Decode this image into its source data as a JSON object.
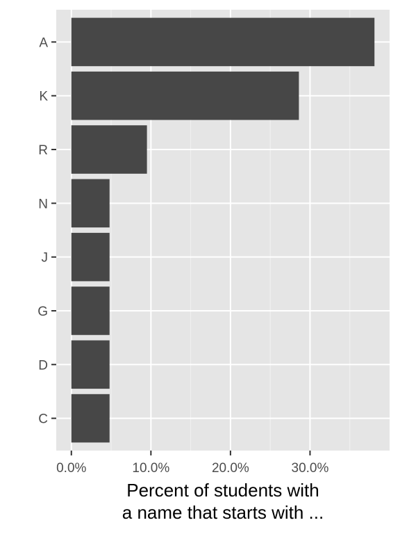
{
  "chart_data": {
    "type": "bar",
    "orientation": "horizontal",
    "categories": [
      "A",
      "K",
      "R",
      "N",
      "J",
      "G",
      "D",
      "C"
    ],
    "values": [
      38.1,
      28.6,
      9.5,
      4.8,
      4.8,
      4.8,
      4.8,
      4.8
    ],
    "xlabel_lines": [
      "Percent of students with",
      "a name that starts with ..."
    ],
    "ylabel": "",
    "xlim": [
      -1.9,
      40
    ],
    "xticks": [
      0,
      10,
      20,
      30
    ],
    "xtick_labels": [
      "0.0%",
      "10.0%",
      "20.0%",
      "30.0%"
    ],
    "grid": true,
    "legend": "none",
    "colors": {
      "panel": "#e5e5e5",
      "bar": "#474747",
      "grid_major": "#ffffff",
      "grid_minor": "#f2f2f2",
      "tick_text": "#4d4d4d",
      "axis_title": "#000000"
    }
  }
}
